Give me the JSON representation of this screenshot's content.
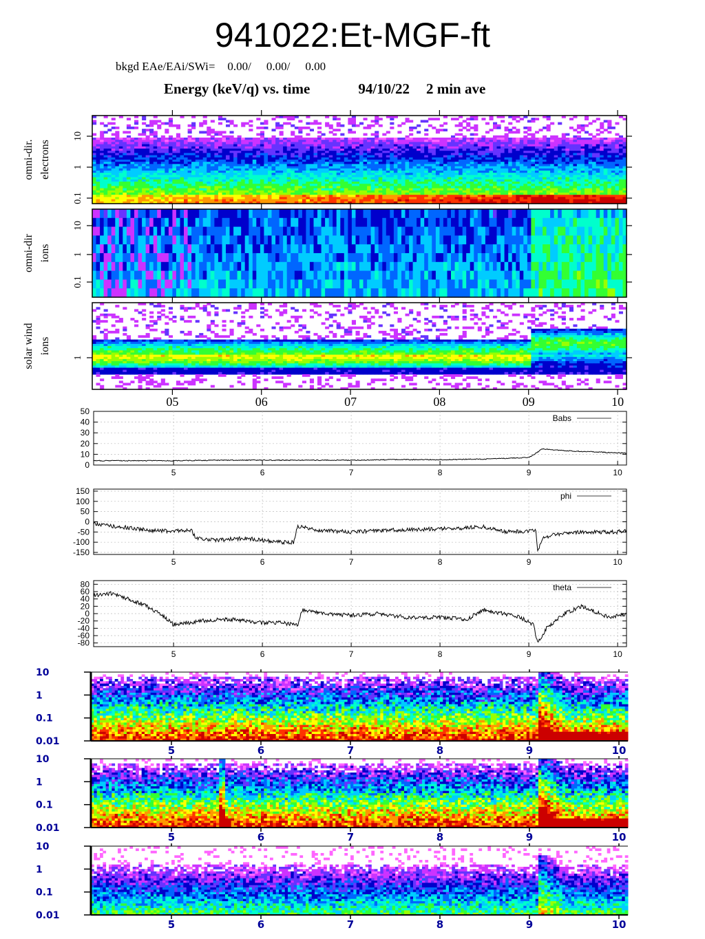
{
  "header": {
    "title": "941022:Et-MGF-ft",
    "bkgd_label": "bkgd EAe/EAi/SWi=",
    "bkgd_values": [
      "0.00/",
      "0.00/",
      "0.00"
    ],
    "subtitle_left": "Energy (keV/q) vs. time",
    "subtitle_date": "94/10/22",
    "subtitle_ave": "2 min ave"
  },
  "colors": {
    "spectrogram_scale": [
      "#ff66ff",
      "#cc33ff",
      "#6633ff",
      "#0000cc",
      "#0066ff",
      "#00ccff",
      "#00ffcc",
      "#33ff33",
      "#99ff00",
      "#ffff00",
      "#ff9900",
      "#ff3300",
      "#cc0000"
    ]
  },
  "chart_data": [
    {
      "type": "heatmap",
      "panel": "omni-dir electrons",
      "ylabel": [
        "omni-dir.",
        "electrons"
      ],
      "yscale": "log",
      "yticks": [
        "10",
        "1",
        "0.1"
      ],
      "x_range": [
        4.1,
        10.1
      ]
    },
    {
      "type": "heatmap",
      "panel": "omni-dir ions",
      "ylabel": [
        "omni-dir",
        "ions"
      ],
      "yscale": "log",
      "yticks": [
        "10",
        "1",
        "0.1"
      ],
      "x_range": [
        4.1,
        10.1
      ]
    },
    {
      "type": "heatmap",
      "panel": "solar wind ions",
      "ylabel": [
        "solar wind",
        "ions"
      ],
      "yscale": "log",
      "yticks": [
        "1"
      ],
      "x_range": [
        4.1,
        10.1
      ],
      "xticks": [
        "05",
        "06",
        "07",
        "08",
        "09",
        "10"
      ]
    },
    {
      "type": "line",
      "legend": "Babs",
      "ylim": [
        0,
        50
      ],
      "yticks": [
        "50",
        "40",
        "30",
        "20",
        "10",
        "0"
      ],
      "xticks": [
        "5",
        "6",
        "7",
        "8",
        "9",
        "10"
      ],
      "x_range": [
        4.1,
        10.1
      ],
      "grid": true,
      "x": [
        4.1,
        4.5,
        5.0,
        5.5,
        6.0,
        6.5,
        7.0,
        7.5,
        8.0,
        8.5,
        9.0,
        9.1,
        9.15,
        9.3,
        9.5,
        9.8,
        10.1
      ],
      "y": [
        4,
        4,
        4,
        4.5,
        4.5,
        4.5,
        4.5,
        5,
        5,
        5.5,
        7,
        12,
        15,
        14,
        13,
        12,
        11
      ]
    },
    {
      "type": "line",
      "legend": "phi",
      "ylim": [
        -160,
        160
      ],
      "yticks": [
        "150",
        "100",
        "50",
        "0",
        "-50",
        "-100",
        "-150"
      ],
      "xticks": [
        "5",
        "6",
        "7",
        "8",
        "9",
        "10"
      ],
      "x_range": [
        4.1,
        10.1
      ],
      "grid": true,
      "x": [
        4.1,
        4.3,
        4.5,
        4.8,
        5.0,
        5.2,
        5.25,
        5.5,
        5.8,
        6.0,
        6.2,
        6.35,
        6.4,
        6.6,
        7.0,
        7.5,
        8.0,
        8.5,
        8.75,
        9.0,
        9.08,
        9.1,
        9.15,
        9.3,
        9.6,
        10.0,
        10.1
      ],
      "y": [
        -10,
        -20,
        -30,
        -45,
        -45,
        -40,
        -80,
        -90,
        -80,
        -90,
        -100,
        -100,
        -20,
        -40,
        -50,
        -40,
        -35,
        -25,
        -50,
        -45,
        -40,
        -150,
        -80,
        -60,
        -50,
        -50,
        -40
      ]
    },
    {
      "type": "line",
      "legend": "theta",
      "ylim": [
        -90,
        90
      ],
      "yticks": [
        "80",
        "60",
        "40",
        "20",
        "0",
        "-20",
        "-40",
        "-60",
        "-80"
      ],
      "xticks": [
        "5",
        "6",
        "7",
        "8",
        "9",
        "10"
      ],
      "x_range": [
        4.1,
        10.1
      ],
      "grid": true,
      "x": [
        4.1,
        4.3,
        4.5,
        4.7,
        4.9,
        5.0,
        5.3,
        5.6,
        6.0,
        6.2,
        6.4,
        6.45,
        6.7,
        7.0,
        7.3,
        7.6,
        8.0,
        8.3,
        8.5,
        8.7,
        8.9,
        9.05,
        9.1,
        9.2,
        9.4,
        9.6,
        9.9,
        10.1
      ],
      "y": [
        50,
        55,
        40,
        20,
        -10,
        -30,
        -20,
        -15,
        -25,
        -25,
        -30,
        10,
        0,
        -5,
        0,
        -10,
        -10,
        -15,
        10,
        0,
        -10,
        -30,
        -80,
        -40,
        0,
        20,
        -10,
        0
      ]
    },
    {
      "type": "heatmap",
      "panel": "spectrogram-1",
      "yscale": "log",
      "yticks": [
        "10",
        "1",
        "0.1",
        "0.01"
      ],
      "xticks": [
        "5",
        "6",
        "7",
        "8",
        "9",
        "10"
      ],
      "x_range": [
        4.1,
        10.1
      ]
    },
    {
      "type": "heatmap",
      "panel": "spectrogram-2",
      "yscale": "log",
      "yticks": [
        "10",
        "1",
        "0.1",
        "0.01"
      ],
      "xticks": [
        "5",
        "6",
        "7",
        "8",
        "9",
        "10"
      ],
      "x_range": [
        4.1,
        10.1
      ]
    },
    {
      "type": "heatmap",
      "panel": "spectrogram-3",
      "yscale": "log",
      "yticks": [
        "10",
        "1",
        "0.1",
        "0.01"
      ],
      "xticks": [
        "5",
        "6",
        "7",
        "8",
        "9",
        "10"
      ],
      "x_range": [
        4.1,
        10.1
      ]
    }
  ]
}
